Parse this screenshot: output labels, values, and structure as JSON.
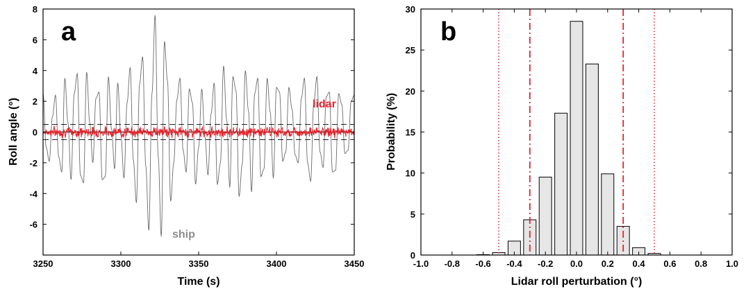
{
  "colors": {
    "ship": "#6b6b6b",
    "lidar": "#e8202a",
    "ship_label": "#8c8c8c",
    "bar_fill": "#e6e6e6",
    "axis": "#000000"
  },
  "chart_data": [
    {
      "panel": "a",
      "type": "line",
      "xlabel": "Time (s)",
      "ylabel": "Roll angle (°)",
      "xlim": [
        3250,
        3450
      ],
      "ylim": [
        -8,
        8
      ],
      "xticks": [
        3250,
        3300,
        3350,
        3400,
        3450
      ],
      "yticks": [
        -6,
        -4,
        -2,
        0,
        2,
        4,
        6,
        8
      ],
      "reference_lines": [
        0.5,
        -0.5
      ],
      "series": [
        {
          "name": "ship",
          "x": [
            3250,
            3252,
            3254,
            3256,
            3258,
            3260,
            3262,
            3264,
            3266,
            3268,
            3270,
            3272,
            3274,
            3276,
            3278,
            3280,
            3282,
            3284,
            3286,
            3288,
            3290,
            3292,
            3294,
            3296,
            3298,
            3300,
            3302,
            3304,
            3306,
            3308,
            3310,
            3312,
            3314,
            3316,
            3318,
            3320,
            3322,
            3324,
            3326,
            3328,
            3330,
            3332,
            3334,
            3336,
            3338,
            3340,
            3342,
            3344,
            3346,
            3348,
            3350,
            3352,
            3354,
            3356,
            3358,
            3360,
            3362,
            3364,
            3366,
            3368,
            3370,
            3372,
            3374,
            3376,
            3378,
            3380,
            3382,
            3384,
            3386,
            3388,
            3390,
            3392,
            3394,
            3396,
            3398,
            3400,
            3402,
            3404,
            3406,
            3408,
            3410,
            3412,
            3414,
            3416,
            3418,
            3420,
            3422,
            3424,
            3426,
            3428,
            3430,
            3432,
            3434,
            3436,
            3438,
            3440,
            3442,
            3444,
            3446,
            3448,
            3450
          ],
          "values": [
            2.5,
            -1.0,
            -1.9,
            1.0,
            2.4,
            -1.6,
            -2.6,
            3.5,
            0.6,
            -3.1,
            2.5,
            3.8,
            -2.8,
            -3.3,
            3.9,
            0.6,
            -2.0,
            2.2,
            2.6,
            -3.1,
            -2.9,
            3.6,
            0.2,
            -2.4,
            3.2,
            -0.2,
            -3.0,
            1.9,
            4.2,
            -1.8,
            -4.6,
            3.1,
            4.9,
            -2.2,
            -6.4,
            2.5,
            7.6,
            -1.6,
            -6.8,
            5.9,
            3.3,
            -4.5,
            -2.0,
            2.1,
            3.5,
            -1.2,
            -2.6,
            2.8,
            1.9,
            -3.4,
            -1.0,
            2.8,
            -0.3,
            -2.8,
            1.2,
            3.2,
            -3.4,
            -2.0,
            4.3,
            0.8,
            -3.6,
            3.6,
            2.7,
            -4.2,
            -2.1,
            4.0,
            1.4,
            -3.9,
            2.5,
            3.5,
            -2.9,
            -2.4,
            3.5,
            1.3,
            -3.0,
            2.9,
            2.6,
            -1.9,
            -1.3,
            2.9,
            1.5,
            -1.5,
            -2.0,
            2.2,
            3.5,
            -2.0,
            -3.2,
            1.9,
            3.6,
            -1.3,
            -2.3,
            2.3,
            2.6,
            -2.6,
            -2.5,
            2.5,
            1.8,
            -1.4,
            -1.2,
            2.0,
            2.4
          ]
        },
        {
          "name": "lidar"
        }
      ],
      "annotations": {
        "lidar": "lidar",
        "ship": "ship"
      }
    },
    {
      "panel": "b",
      "type": "bar",
      "xlabel": "Lidar roll perturbation (°)",
      "ylabel": "Probability (%)",
      "xlim": [
        -1.0,
        1.0
      ],
      "ylim": [
        0,
        30
      ],
      "xticks": [
        "-1.0",
        "-0.8",
        "-0.6",
        "-0.4",
        "-0.2",
        "0.0",
        "0.2",
        "0.4",
        "0.6",
        "0.8",
        "1.0"
      ],
      "yticks": [
        0,
        5,
        10,
        15,
        20,
        25,
        30
      ],
      "bin_centers": [
        -0.6,
        -0.5,
        -0.4,
        -0.3,
        -0.2,
        -0.1,
        0.0,
        0.1,
        0.2,
        0.3,
        0.4,
        0.5
      ],
      "values": [
        0.05,
        0.3,
        1.7,
        4.3,
        9.5,
        17.3,
        28.5,
        23.3,
        9.9,
        3.5,
        0.9,
        0.2
      ],
      "bar_width": 0.08,
      "dashdot_lines": [
        -0.3,
        0.3
      ],
      "dotted_lines": [
        -0.5,
        0.5
      ]
    }
  ]
}
